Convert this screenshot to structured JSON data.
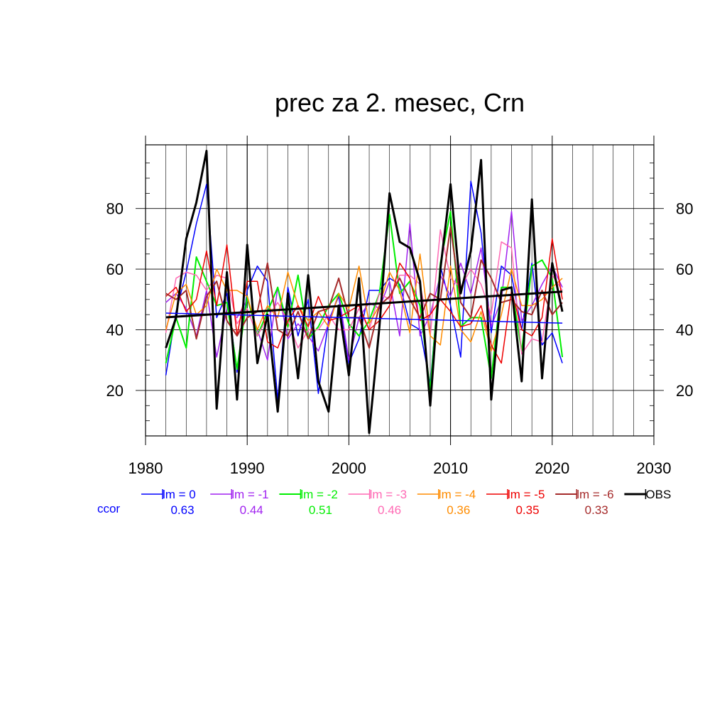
{
  "chart_data": {
    "type": "line",
    "title": "prec za 2. mesec, Crn",
    "xlabel": "",
    "ylabel": "",
    "xlim": [
      1980,
      2030
    ],
    "ylim": [
      5,
      101
    ],
    "x_ticks": [
      1980,
      1990,
      2000,
      2010,
      2020,
      2030
    ],
    "y_ticks": [
      20,
      40,
      60,
      80
    ],
    "grid": true,
    "ccor_label": "ccor",
    "x": [
      1982,
      1983,
      1984,
      1985,
      1986,
      1987,
      1988,
      1989,
      1990,
      1991,
      1992,
      1993,
      1994,
      1995,
      1996,
      1997,
      1998,
      1999,
      2000,
      2001,
      2002,
      2003,
      2004,
      2005,
      2006,
      2007,
      2008,
      2009,
      2010,
      2011,
      2012,
      2013,
      2014,
      2015,
      2016,
      2017,
      2018,
      2019,
      2020,
      2021
    ],
    "series": [
      {
        "name": "lm = 0",
        "color": "#0000ff",
        "ccor": "0.63",
        "stroke": 1.5,
        "values": [
          25,
          46,
          59,
          75,
          88,
          44,
          52,
          26,
          53,
          61,
          56,
          17,
          54,
          38,
          50,
          19,
          43,
          51,
          29,
          37,
          53,
          53,
          57,
          55,
          42,
          40,
          22,
          61,
          48,
          31,
          89,
          72,
          39,
          61,
          58,
          40,
          62,
          35,
          39,
          29
        ],
        "trend": [
          45.5,
          42.2
        ]
      },
      {
        "name": "lm = -1",
        "color": "#a020f0",
        "ccor": "0.44",
        "stroke": 1.5,
        "values": [
          49,
          52,
          47,
          38,
          53,
          31,
          47,
          44,
          50,
          40,
          30,
          54,
          37,
          42,
          38,
          33,
          42,
          52,
          30,
          44,
          49,
          47,
          56,
          38,
          75,
          38,
          45,
          58,
          51,
          62,
          52,
          67,
          41,
          50,
          79,
          43,
          48,
          55,
          61,
          54
        ]
      },
      {
        "name": "lm = -2",
        "color": "#00ee00",
        "ccor": "0.51",
        "stroke": 2,
        "values": [
          29,
          44,
          34,
          64,
          56,
          48,
          49,
          27,
          51,
          38,
          46,
          54,
          41,
          58,
          37,
          41,
          48,
          52,
          42,
          38,
          43,
          52,
          78,
          52,
          56,
          48,
          20,
          62,
          79,
          41,
          44,
          44,
          24,
          54,
          54,
          33,
          61,
          63,
          57,
          31
        ]
      },
      {
        "name": "lm = -3",
        "color": "#ff69b4",
        "ccor": "0.46",
        "stroke": 1.5,
        "values": [
          39,
          57,
          59,
          58,
          53,
          58,
          57,
          42,
          47,
          38,
          44,
          49,
          43,
          34,
          40,
          40,
          45,
          40,
          40,
          47,
          40,
          52,
          50,
          58,
          58,
          55,
          38,
          73,
          57,
          54,
          60,
          55,
          45,
          69,
          67,
          32,
          37,
          36,
          58,
          53
        ]
      },
      {
        "name": "lm = -4",
        "color": "#ff8c00",
        "ccor": "0.36",
        "stroke": 1.5,
        "values": [
          40,
          52,
          55,
          45,
          48,
          60,
          53,
          53,
          51,
          40,
          48,
          44,
          59,
          48,
          43,
          46,
          41,
          52,
          47,
          61,
          42,
          48,
          59,
          53,
          39,
          65,
          38,
          35,
          61,
          40,
          36,
          46,
          33,
          45,
          60,
          48,
          48,
          50,
          54,
          57
        ]
      },
      {
        "name": "lm = -5",
        "color": "#ee0000",
        "ccor": "0.35",
        "stroke": 1.5,
        "values": [
          51,
          54,
          46,
          50,
          66,
          48,
          68,
          38,
          56,
          56,
          36,
          34,
          43,
          48,
          41,
          51,
          43,
          44,
          46,
          48,
          40,
          43,
          48,
          62,
          57,
          43,
          45,
          50,
          46,
          41,
          42,
          48,
          35,
          29,
          53,
          40,
          38,
          44,
          70,
          50
        ]
      },
      {
        "name": "lm = -6",
        "color": "#a52a2a",
        "ccor": "0.33",
        "stroke": 2,
        "values": [
          52,
          50,
          53,
          37,
          51,
          56,
          43,
          38,
          44,
          46,
          62,
          40,
          38,
          46,
          37,
          46,
          47,
          57,
          44,
          44,
          34,
          48,
          51,
          57,
          50,
          44,
          52,
          50,
          74,
          49,
          44,
          63,
          57,
          49,
          50,
          46,
          45,
          53,
          45,
          49
        ]
      },
      {
        "name": "OBS",
        "color": "#000000",
        "ccor": "",
        "stroke": 3,
        "values": [
          34,
          44,
          70,
          82,
          99,
          14,
          59,
          17,
          68,
          29,
          45,
          13,
          52,
          24,
          58,
          23,
          13,
          48,
          25,
          57,
          6,
          41,
          85,
          69,
          67,
          56,
          15,
          60,
          88,
          52,
          66,
          96,
          17,
          53,
          54,
          23,
          83,
          24,
          62,
          46
        ],
        "trend": [
          44.1,
          52.6
        ]
      }
    ]
  }
}
